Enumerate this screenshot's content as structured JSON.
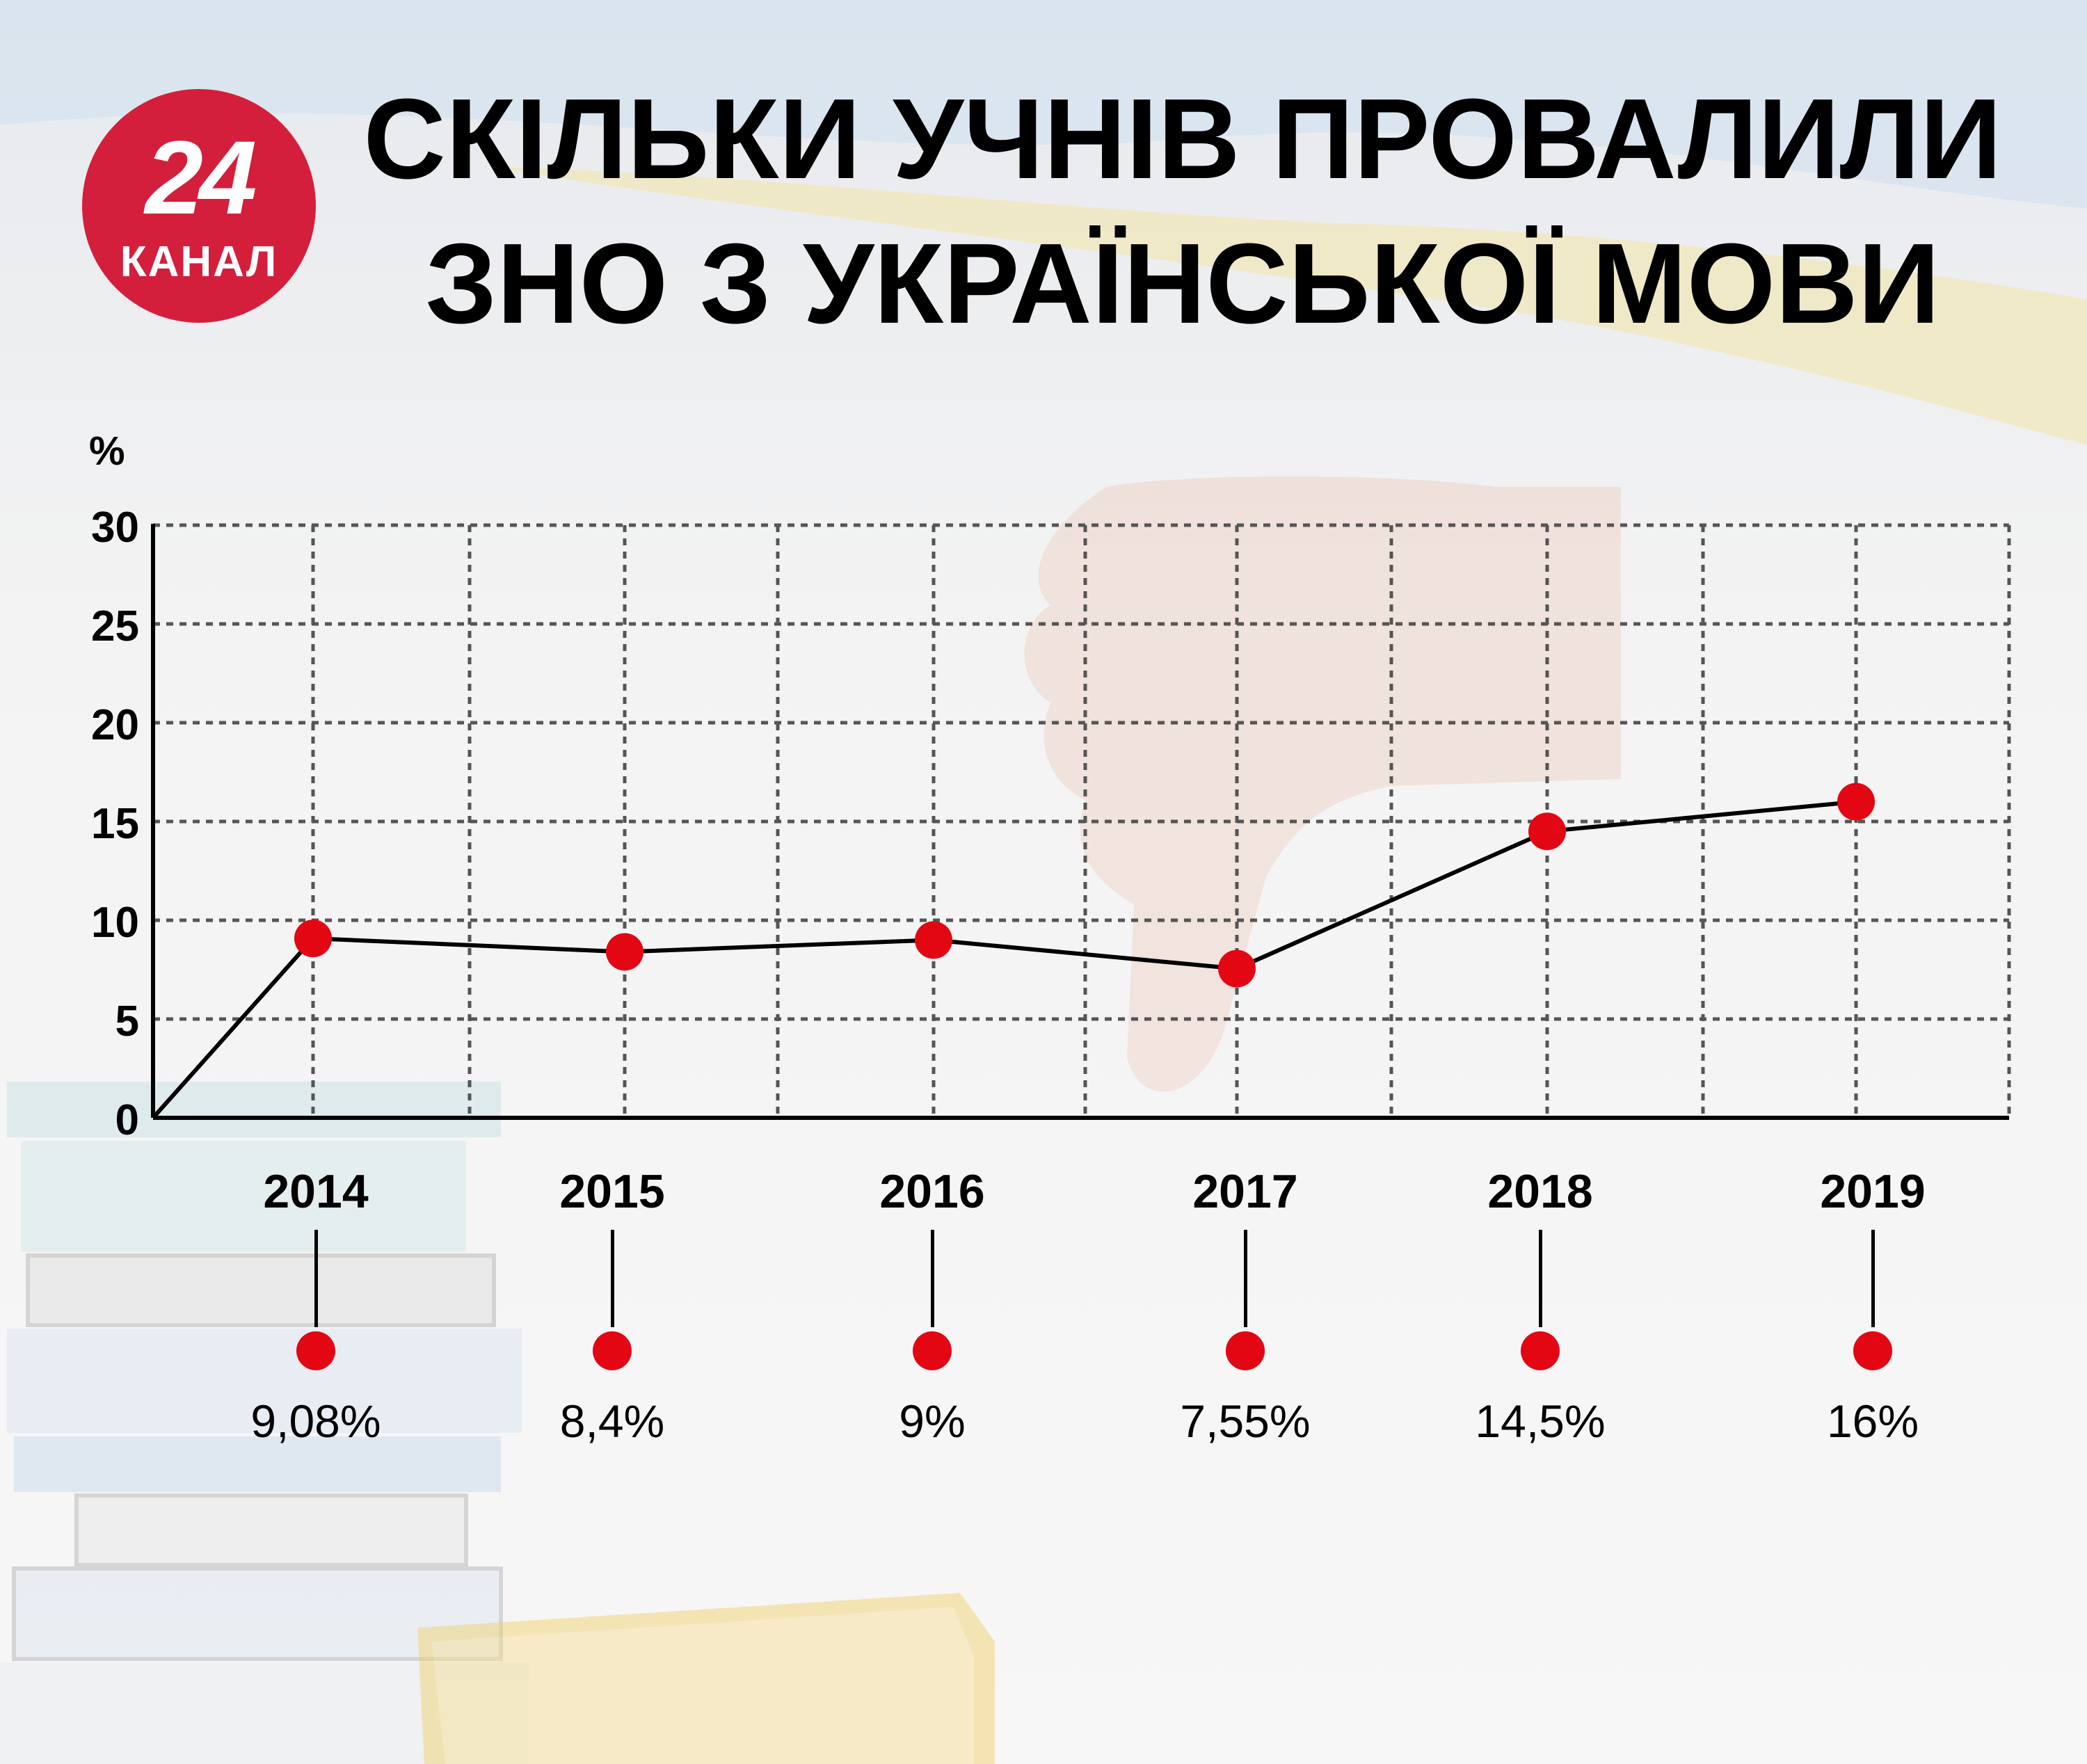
{
  "logo": {
    "number": "24",
    "word": "КАНАЛ"
  },
  "title": {
    "line1": "СКІЛЬКИ УЧНІВ ПРОВАЛИЛИ",
    "line2": "ЗНО З УКРАЇНСЬКОЇ МОВИ"
  },
  "colors": {
    "accent": "#e30613",
    "logo": "#d41f3c",
    "line": "#000000",
    "grid": "#555555"
  },
  "chart_data": {
    "type": "line",
    "ylabel": "%",
    "xlabel": "",
    "ylim": [
      0,
      30
    ],
    "yticks": [
      "0",
      "5",
      "10",
      "15",
      "20",
      "25",
      "30"
    ],
    "grid": true,
    "categories": [
      "2014",
      "2015",
      "2016",
      "2017",
      "2018",
      "2019"
    ],
    "values": [
      9.08,
      8.4,
      9,
      7.55,
      14.5,
      16
    ],
    "line_start": {
      "x": "origin",
      "y": 0
    },
    "value_labels": [
      "9,08%",
      "8,4%",
      "9%",
      "7,55%",
      "14,5%",
      "16%"
    ]
  }
}
